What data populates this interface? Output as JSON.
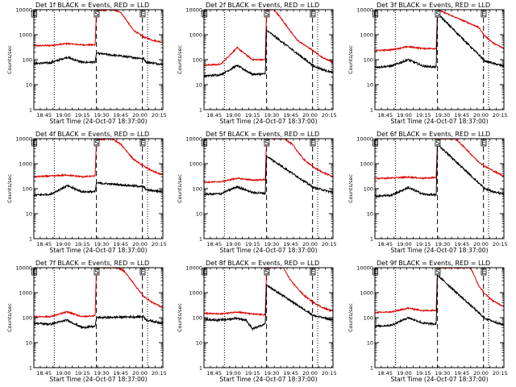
{
  "chart_data": {
    "type": "line",
    "title_suffix": "BLACK = Events, RED = LLD",
    "xlabel": "Start Time (24-Oct-07 18:37:00)",
    "ylabel": "Counts/sec",
    "x_tick_labels": [
      "18:45",
      "19:00",
      "19:15",
      "19:30",
      "19:45",
      "20:00",
      "20:15"
    ],
    "x_ticks_min": [
      45,
      60,
      75,
      90,
      105,
      120,
      135
    ],
    "xlim_min": [
      37,
      138
    ],
    "ylim": [
      1,
      10000
    ],
    "y_scale": "log",
    "y_tick_labels": [
      "1",
      "10",
      "100",
      "1000",
      "10000"
    ],
    "y_ticks": [
      1,
      10,
      100,
      1000,
      10000
    ],
    "series_colors": {
      "events": "#000000",
      "lld": "#dd0000"
    },
    "markers": {
      "dotted_min": [
        53,
        126
      ],
      "dashed_min": [
        86,
        122
      ],
      "flags": [
        {
          "label": "E",
          "x_min": 37.4
        },
        {
          "label": "S",
          "x_min": 86.2
        },
        {
          "label": "E",
          "x_min": 122.2
        }
      ]
    },
    "panels": [
      {
        "title": "Det 1f",
        "spike_min": 86,
        "events": [
          [
            37,
            70
          ],
          [
            50,
            75
          ],
          [
            63,
            125
          ],
          [
            75,
            78
          ],
          [
            85,
            80
          ],
          [
            86,
            180
          ],
          [
            123,
            110
          ],
          [
            125,
            80
          ],
          [
            138,
            65
          ]
        ],
        "lld": [
          [
            37,
            360
          ],
          [
            50,
            370
          ],
          [
            63,
            440
          ],
          [
            75,
            390
          ],
          [
            85,
            390
          ],
          [
            86,
            9000
          ],
          [
            98,
            10000
          ],
          [
            105,
            8000
          ],
          [
            115,
            1500
          ],
          [
            123,
            800
          ],
          [
            130,
            600
          ],
          [
            138,
            500
          ]
        ]
      },
      {
        "title": "Det 2f",
        "spike_min": 86,
        "events": [
          [
            37,
            22
          ],
          [
            50,
            25
          ],
          [
            63,
            58
          ],
          [
            75,
            26
          ],
          [
            85,
            27
          ],
          [
            86,
            1500
          ],
          [
            123,
            55
          ],
          [
            130,
            40
          ],
          [
            138,
            30
          ]
        ],
        "lld": [
          [
            37,
            60
          ],
          [
            50,
            65
          ],
          [
            63,
            300
          ],
          [
            75,
            100
          ],
          [
            85,
            100
          ],
          [
            86,
            10000
          ],
          [
            92,
            10000
          ],
          [
            98,
            4000
          ],
          [
            110,
            600
          ],
          [
            123,
            220
          ],
          [
            130,
            120
          ],
          [
            138,
            80
          ]
        ]
      },
      {
        "title": "Det 3f",
        "spike_min": 86,
        "events": [
          [
            37,
            50
          ],
          [
            50,
            55
          ],
          [
            63,
            100
          ],
          [
            75,
            55
          ],
          [
            85,
            50
          ],
          [
            86,
            7000
          ],
          [
            123,
            90
          ],
          [
            130,
            70
          ],
          [
            138,
            55
          ]
        ],
        "lld": [
          [
            37,
            230
          ],
          [
            50,
            250
          ],
          [
            63,
            330
          ],
          [
            75,
            280
          ],
          [
            85,
            280
          ],
          [
            86,
            10000
          ],
          [
            118,
            2000
          ],
          [
            123,
            900
          ],
          [
            130,
            450
          ],
          [
            138,
            280
          ]
        ]
      },
      {
        "title": "Det 4f",
        "spike_min": 86,
        "events": [
          [
            37,
            55
          ],
          [
            50,
            60
          ],
          [
            63,
            130
          ],
          [
            75,
            75
          ],
          [
            85,
            75
          ],
          [
            86,
            170
          ],
          [
            123,
            120
          ],
          [
            125,
            90
          ],
          [
            138,
            75
          ]
        ],
        "lld": [
          [
            37,
            300
          ],
          [
            50,
            320
          ],
          [
            63,
            350
          ],
          [
            75,
            300
          ],
          [
            85,
            320
          ],
          [
            86,
            9000
          ],
          [
            98,
            10000
          ],
          [
            105,
            6000
          ],
          [
            115,
            1500
          ],
          [
            123,
            800
          ],
          [
            130,
            500
          ],
          [
            138,
            350
          ]
        ]
      },
      {
        "title": "Det 5f",
        "spike_min": 86,
        "events": [
          [
            37,
            60
          ],
          [
            50,
            62
          ],
          [
            63,
            120
          ],
          [
            75,
            70
          ],
          [
            85,
            65
          ],
          [
            86,
            2000
          ],
          [
            123,
            110
          ],
          [
            130,
            90
          ],
          [
            138,
            70
          ]
        ],
        "lld": [
          [
            37,
            180
          ],
          [
            50,
            190
          ],
          [
            63,
            260
          ],
          [
            75,
            220
          ],
          [
            85,
            230
          ],
          [
            86,
            10000
          ],
          [
            100,
            10000
          ],
          [
            106,
            6000
          ],
          [
            115,
            1500
          ],
          [
            123,
            700
          ],
          [
            130,
            450
          ],
          [
            138,
            300
          ]
        ]
      },
      {
        "title": "Det 6f",
        "spike_min": 86,
        "events": [
          [
            37,
            50
          ],
          [
            50,
            55
          ],
          [
            63,
            110
          ],
          [
            75,
            60
          ],
          [
            85,
            55
          ],
          [
            86,
            6000
          ],
          [
            123,
            100
          ],
          [
            130,
            75
          ],
          [
            138,
            60
          ]
        ],
        "lld": [
          [
            37,
            250
          ],
          [
            50,
            270
          ],
          [
            63,
            290
          ],
          [
            75,
            260
          ],
          [
            85,
            280
          ],
          [
            86,
            10000
          ],
          [
            100,
            10000
          ],
          [
            108,
            4000
          ],
          [
            118,
            1200
          ],
          [
            123,
            800
          ],
          [
            130,
            500
          ],
          [
            138,
            320
          ]
        ]
      },
      {
        "title": "Det 7f",
        "spike_min": 86,
        "events": [
          [
            37,
            60
          ],
          [
            50,
            55
          ],
          [
            63,
            80
          ],
          [
            75,
            40
          ],
          [
            85,
            45
          ],
          [
            86,
            100
          ],
          [
            123,
            110
          ],
          [
            125,
            80
          ],
          [
            138,
            60
          ]
        ],
        "lld": [
          [
            37,
            110
          ],
          [
            50,
            110
          ],
          [
            63,
            170
          ],
          [
            75,
            110
          ],
          [
            85,
            120
          ],
          [
            86,
            10000
          ],
          [
            103,
            10000
          ],
          [
            108,
            7000
          ],
          [
            118,
            1500
          ],
          [
            123,
            700
          ],
          [
            130,
            400
          ],
          [
            138,
            250
          ]
        ]
      },
      {
        "title": "Det 8f",
        "spike_min": 86,
        "events": [
          [
            37,
            85
          ],
          [
            50,
            80
          ],
          [
            63,
            95
          ],
          [
            70,
            80
          ],
          [
            75,
            35
          ],
          [
            85,
            55
          ],
          [
            86,
            2000
          ],
          [
            123,
            120
          ],
          [
            130,
            100
          ],
          [
            138,
            80
          ]
        ],
        "lld": [
          [
            37,
            150
          ],
          [
            50,
            140
          ],
          [
            63,
            170
          ],
          [
            75,
            140
          ],
          [
            85,
            130
          ],
          [
            86,
            10000
          ],
          [
            99,
            10000
          ],
          [
            105,
            3000
          ],
          [
            115,
            800
          ],
          [
            123,
            400
          ],
          [
            130,
            250
          ],
          [
            138,
            180
          ]
        ]
      },
      {
        "title": "Det 9f",
        "spike_min": 86,
        "events": [
          [
            37,
            45
          ],
          [
            50,
            50
          ],
          [
            63,
            100
          ],
          [
            75,
            60
          ],
          [
            85,
            55
          ],
          [
            86,
            5000
          ],
          [
            123,
            95
          ],
          [
            130,
            70
          ],
          [
            138,
            50
          ]
        ],
        "lld": [
          [
            37,
            160
          ],
          [
            50,
            170
          ],
          [
            63,
            240
          ],
          [
            75,
            190
          ],
          [
            85,
            200
          ],
          [
            86,
            10000
          ],
          [
            112,
            10000
          ],
          [
            118,
            2000
          ],
          [
            123,
            900
          ],
          [
            130,
            450
          ],
          [
            138,
            280
          ]
        ]
      }
    ]
  }
}
